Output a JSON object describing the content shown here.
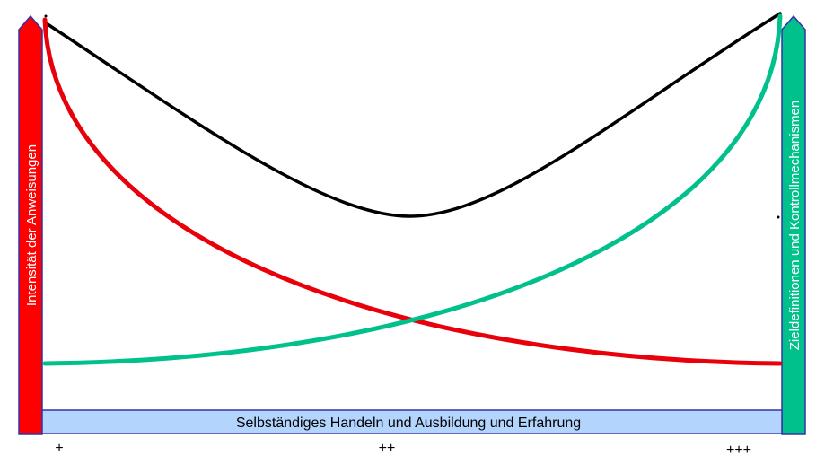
{
  "diagram": {
    "left_axis_label": "Intensität der Anweisungen",
    "right_axis_label": "Zieldefinitionen und Kontrollmechanismen",
    "bottom_bar_label": "Selbständiges Handeln und Ausbildung und Erfahrung",
    "ticks": [
      "+",
      "++",
      "+++"
    ],
    "colors": {
      "left_arrow": "#ff0000",
      "right_arrow": "#00c08b",
      "arrow_border": "#3333aa",
      "bottom_bar": "#b3d4fc",
      "red_curve": "#e8000b",
      "green_curve": "#00c08b",
      "black_curve": "#000000"
    }
  }
}
